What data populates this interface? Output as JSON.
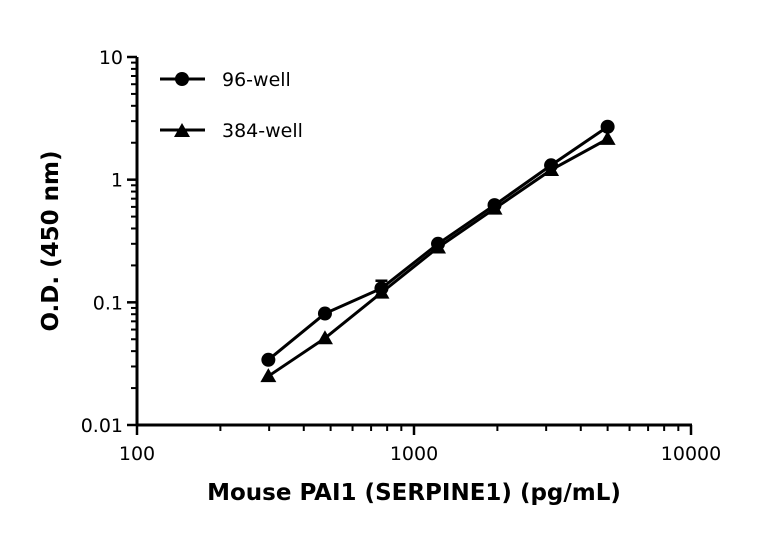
{
  "chart_data": {
    "type": "line",
    "title": "",
    "xlabel": "Mouse PAI1 (SERPINE1) (pg/mL)",
    "ylabel": "O.D. (450 nm)",
    "xscale": "log",
    "yscale": "log",
    "xlim": [
      100,
      10000
    ],
    "ylim": [
      0.01,
      10
    ],
    "xticks": [
      "100",
      "1000",
      "10000"
    ],
    "yticks": [
      "0.01",
      "0.1",
      "1",
      "10"
    ],
    "grid": false,
    "legend": "top-left",
    "x": [
      298,
      477,
      763,
      1221,
      1953,
      3125,
      5000
    ],
    "series": [
      {
        "name": "96-well",
        "marker": "circle",
        "color": "#000000",
        "values": [
          0.034,
          0.081,
          0.13,
          0.3,
          0.62,
          1.31,
          2.7
        ],
        "error": [
          null,
          null,
          0.02,
          null,
          null,
          null,
          null
        ]
      },
      {
        "name": "384-well",
        "marker": "triangle",
        "color": "#000000",
        "values": [
          0.025,
          0.051,
          0.12,
          0.28,
          0.58,
          1.2,
          2.15
        ]
      }
    ]
  }
}
